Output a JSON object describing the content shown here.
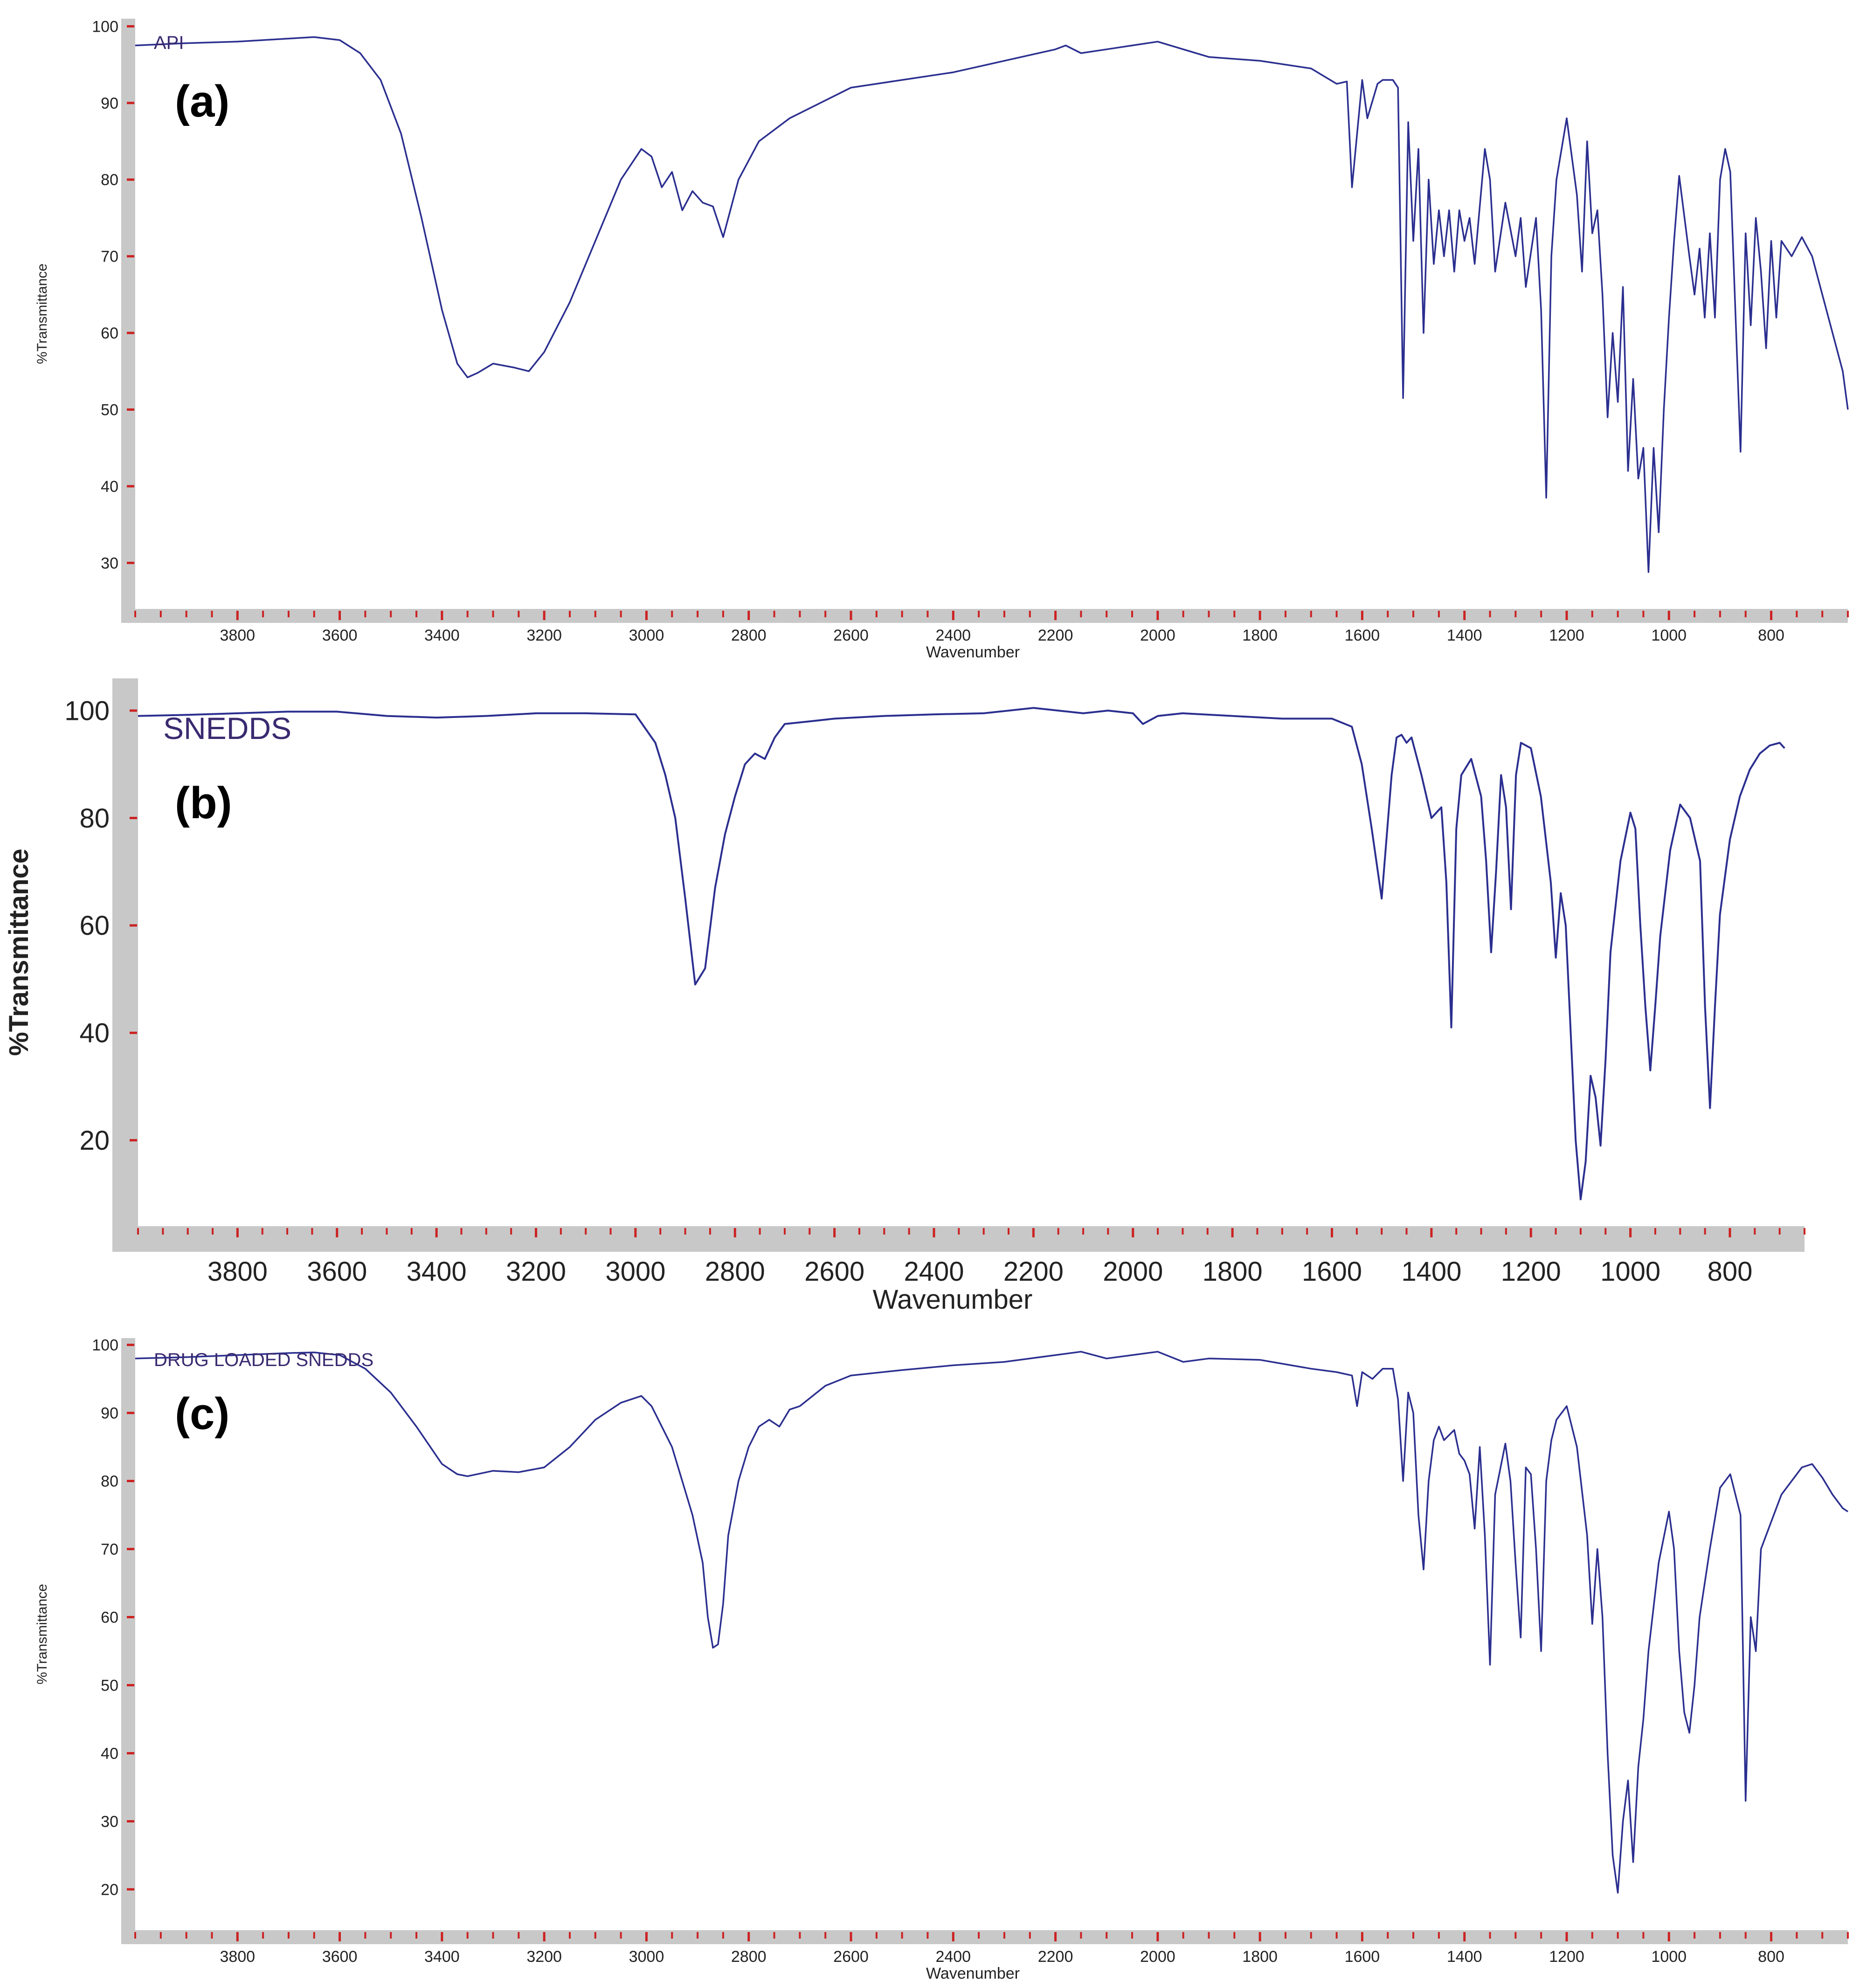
{
  "colors": {
    "line": "#2b2f8f",
    "axis_band": "#c8c8c8",
    "tick": "#cc2222",
    "label": "#222222",
    "series_label": "#3a2a70"
  },
  "chart_data": [
    {
      "type": "line",
      "panel_letter": "(a)",
      "series_label": "API",
      "xlabel": "Wavenumber",
      "ylabel": "%Transmittance",
      "xlim": [
        4000,
        650
      ],
      "ylim": [
        24,
        101
      ],
      "x_ticks": [
        3800,
        3600,
        3400,
        3200,
        3000,
        2800,
        2600,
        2400,
        2200,
        2000,
        1800,
        1600,
        1400,
        1200,
        1000,
        800
      ],
      "y_ticks": [
        30,
        40,
        50,
        60,
        70,
        80,
        90,
        100
      ],
      "series": [
        {
          "x": [
            4000,
            3900,
            3800,
            3700,
            3650,
            3600,
            3560,
            3520,
            3480,
            3440,
            3400,
            3370,
            3350,
            3330,
            3300,
            3260,
            3230,
            3200,
            3150,
            3100,
            3050,
            3010,
            2990,
            2970,
            2950,
            2930,
            2910,
            2890,
            2870,
            2850,
            2820,
            2780,
            2720,
            2600,
            2500,
            2400,
            2300,
            2200,
            2180,
            2150,
            2100,
            2050,
            2000,
            1950,
            1900,
            1800,
            1700,
            1650,
            1630,
            1620,
            1600,
            1590,
            1570,
            1560,
            1540,
            1530,
            1520,
            1510,
            1500,
            1490,
            1480,
            1470,
            1460,
            1450,
            1440,
            1430,
            1420,
            1410,
            1400,
            1390,
            1380,
            1360,
            1350,
            1340,
            1320,
            1300,
            1290,
            1280,
            1260,
            1250,
            1240,
            1230,
            1220,
            1200,
            1180,
            1170,
            1160,
            1150,
            1140,
            1130,
            1120,
            1110,
            1100,
            1090,
            1080,
            1070,
            1060,
            1050,
            1040,
            1030,
            1020,
            1010,
            1000,
            990,
            980,
            960,
            950,
            940,
            930,
            920,
            910,
            900,
            890,
            880,
            860,
            850,
            840,
            830,
            820,
            810,
            800,
            790,
            780,
            760,
            740,
            720,
            700,
            680,
            660,
            650
          ],
          "y": [
            97.5,
            97.8,
            98.0,
            98.4,
            98.6,
            98.2,
            96.5,
            93.0,
            86.0,
            75.0,
            63.0,
            56.0,
            54.2,
            54.8,
            56.0,
            55.5,
            55.0,
            57.5,
            64.0,
            72.0,
            80.0,
            84.0,
            83.0,
            79.0,
            81.0,
            76.0,
            78.5,
            77.0,
            76.5,
            72.5,
            80.0,
            85.0,
            88.0,
            92.0,
            93.0,
            94.0,
            95.5,
            97.0,
            97.5,
            96.5,
            97.0,
            97.5,
            98.0,
            97.0,
            96.0,
            95.5,
            94.5,
            92.5,
            92.8,
            79.0,
            93.0,
            88.0,
            92.5,
            93.0,
            93.0,
            92.0,
            51.5,
            87.5,
            72.0,
            84.0,
            60.0,
            80.0,
            69.0,
            76.0,
            70.0,
            76.0,
            68.0,
            76.0,
            72.0,
            75.0,
            69.0,
            84.0,
            80.0,
            68.0,
            77.0,
            70.0,
            75.0,
            66.0,
            75.0,
            63.0,
            38.5,
            70.0,
            80.0,
            88.0,
            78.0,
            68.0,
            85.0,
            73.0,
            76.0,
            65.0,
            49.0,
            60.0,
            51.0,
            66.0,
            42.0,
            54.0,
            41.0,
            45.0,
            28.8,
            45.0,
            34.0,
            50.0,
            62.0,
            72.0,
            80.5,
            70.0,
            65.0,
            71.0,
            62.0,
            73.0,
            62.0,
            80.0,
            84.0,
            81.0,
            44.5,
            73.0,
            61.0,
            75.0,
            68.0,
            58.0,
            72.0,
            62.0,
            72.0,
            70.0,
            72.5,
            70.0,
            65.0,
            60.0,
            55.0,
            50.0
          ]
        }
      ]
    },
    {
      "type": "line",
      "panel_letter": "(b)",
      "series_label": "SNEDDS",
      "xlabel": "Wavenumber",
      "ylabel": "%Transmittance",
      "xlim": [
        4000,
        650
      ],
      "ylim": [
        4,
        106
      ],
      "x_ticks": [
        3800,
        3600,
        3400,
        3200,
        3000,
        2800,
        2600,
        2400,
        2200,
        2000,
        1800,
        1600,
        1400,
        1200,
        1000,
        800
      ],
      "y_ticks": [
        20,
        40,
        60,
        80,
        100
      ],
      "series": [
        {
          "x": [
            4000,
            3900,
            3800,
            3700,
            3600,
            3500,
            3400,
            3300,
            3200,
            3100,
            3000,
            2960,
            2940,
            2920,
            2900,
            2880,
            2860,
            2840,
            2820,
            2800,
            2780,
            2760,
            2740,
            2720,
            2700,
            2650,
            2600,
            2500,
            2400,
            2300,
            2200,
            2150,
            2100,
            2050,
            2000,
            1980,
            1950,
            1900,
            1800,
            1700,
            1600,
            1560,
            1540,
            1520,
            1500,
            1480,
            1470,
            1460,
            1450,
            1440,
            1420,
            1400,
            1380,
            1370,
            1360,
            1350,
            1340,
            1320,
            1300,
            1290,
            1280,
            1270,
            1260,
            1250,
            1240,
            1230,
            1220,
            1200,
            1180,
            1160,
            1150,
            1140,
            1130,
            1120,
            1110,
            1100,
            1090,
            1080,
            1070,
            1060,
            1050,
            1040,
            1020,
            1000,
            990,
            980,
            970,
            960,
            950,
            940,
            920,
            900,
            880,
            860,
            850,
            840,
            830,
            820,
            800,
            780,
            760,
            740,
            720,
            700,
            690
          ],
          "y": [
            99.0,
            99.2,
            99.5,
            99.8,
            99.8,
            99.0,
            98.7,
            99.0,
            99.5,
            99.5,
            99.3,
            94.0,
            88.0,
            80.0,
            65.0,
            49.0,
            52.0,
            67.0,
            77.0,
            84.0,
            90.0,
            92.0,
            91.0,
            95.0,
            97.5,
            98.0,
            98.5,
            99.0,
            99.3,
            99.5,
            100.5,
            100.0,
            99.5,
            100.0,
            99.5,
            97.5,
            99.0,
            99.5,
            99.0,
            98.5,
            98.5,
            97.0,
            90.0,
            78.0,
            65.0,
            88.0,
            95.0,
            95.5,
            94.0,
            95.0,
            88.0,
            80.0,
            82.0,
            68.0,
            41.0,
            78.0,
            88.0,
            91.0,
            84.0,
            72.0,
            55.0,
            70.0,
            88.0,
            82.0,
            63.0,
            88.0,
            94.0,
            93.0,
            84.0,
            68.0,
            54.0,
            66.0,
            60.0,
            40.0,
            20.0,
            9.0,
            16.0,
            32.0,
            28.0,
            19.0,
            35.0,
            55.0,
            72.0,
            81.0,
            78.0,
            60.0,
            45.0,
            33.0,
            45.0,
            58.0,
            74.0,
            82.5,
            80.0,
            72.0,
            45.0,
            26.0,
            45.0,
            62.0,
            76.0,
            84.0,
            89.0,
            92.0,
            93.5,
            94.0,
            93.0
          ]
        }
      ]
    },
    {
      "type": "line",
      "panel_letter": "(c)",
      "series_label": "DRUG LOADED SNEDDS",
      "xlabel": "Wavenumber",
      "ylabel": "%Transmittance",
      "xlim": [
        4000,
        650
      ],
      "ylim": [
        14,
        101
      ],
      "x_ticks": [
        3800,
        3600,
        3400,
        3200,
        3000,
        2800,
        2600,
        2400,
        2200,
        2000,
        1800,
        1600,
        1400,
        1200,
        1000,
        800
      ],
      "y_ticks": [
        20,
        30,
        40,
        50,
        60,
        70,
        80,
        90,
        100
      ],
      "series": [
        {
          "x": [
            4000,
            3900,
            3800,
            3700,
            3650,
            3600,
            3550,
            3500,
            3450,
            3400,
            3370,
            3350,
            3300,
            3250,
            3200,
            3150,
            3100,
            3050,
            3010,
            2990,
            2970,
            2950,
            2930,
            2910,
            2890,
            2880,
            2870,
            2860,
            2850,
            2840,
            2820,
            2800,
            2780,
            2760,
            2740,
            2720,
            2700,
            2650,
            2600,
            2500,
            2400,
            2300,
            2200,
            2150,
            2100,
            2050,
            2000,
            1950,
            1900,
            1800,
            1700,
            1650,
            1620,
            1610,
            1600,
            1580,
            1560,
            1540,
            1530,
            1520,
            1510,
            1500,
            1490,
            1480,
            1470,
            1460,
            1450,
            1440,
            1420,
            1410,
            1400,
            1390,
            1380,
            1370,
            1360,
            1350,
            1340,
            1320,
            1310,
            1300,
            1290,
            1280,
            1270,
            1260,
            1250,
            1240,
            1230,
            1220,
            1200,
            1180,
            1160,
            1150,
            1140,
            1130,
            1120,
            1110,
            1100,
            1090,
            1080,
            1070,
            1060,
            1050,
            1040,
            1020,
            1000,
            990,
            980,
            970,
            960,
            950,
            940,
            920,
            900,
            880,
            860,
            850,
            840,
            830,
            820,
            800,
            780,
            760,
            740,
            720,
            700,
            680,
            660,
            650
          ],
          "y": [
            98.0,
            98.2,
            98.5,
            98.8,
            98.9,
            98.5,
            96.5,
            93.0,
            88.0,
            82.5,
            81.0,
            80.7,
            81.5,
            81.3,
            82.0,
            85.0,
            89.0,
            91.5,
            92.5,
            91.0,
            88.0,
            85.0,
            80.0,
            75.0,
            68.0,
            60.0,
            55.5,
            56.0,
            62.0,
            72.0,
            80.0,
            85.0,
            88.0,
            89.0,
            88.0,
            90.5,
            91.0,
            94.0,
            95.5,
            96.3,
            97.0,
            97.5,
            98.5,
            99.0,
            98.0,
            98.5,
            99.0,
            97.5,
            98.0,
            97.8,
            96.5,
            96.0,
            95.5,
            91.0,
            96.0,
            95.0,
            96.5,
            96.5,
            92.0,
            80.0,
            93.0,
            90.0,
            75.0,
            67.0,
            80.0,
            86.0,
            88.0,
            86.0,
            87.5,
            84.0,
            83.0,
            81.0,
            73.0,
            85.0,
            72.0,
            53.0,
            78.0,
            85.5,
            80.0,
            68.0,
            57.0,
            82.0,
            81.0,
            70.0,
            55.0,
            80.0,
            86.0,
            89.0,
            91.0,
            85.0,
            72.0,
            59.0,
            70.0,
            60.0,
            40.0,
            25.0,
            19.5,
            30.0,
            36.0,
            24.0,
            38.0,
            45.0,
            55.0,
            68.0,
            75.5,
            70.0,
            55.0,
            46.0,
            43.0,
            50.0,
            60.0,
            70.0,
            79.0,
            81.0,
            75.0,
            33.0,
            60.0,
            55.0,
            70.0,
            74.0,
            78.0,
            80.0,
            82.0,
            82.5,
            80.5,
            78.0,
            76.0,
            75.5
          ]
        }
      ]
    }
  ]
}
